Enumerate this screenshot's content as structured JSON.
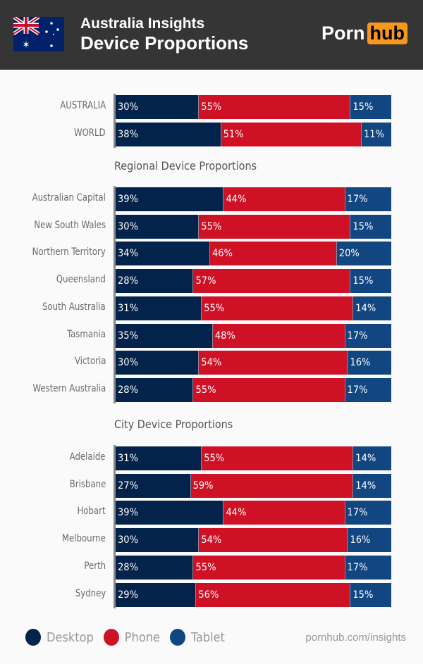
{
  "header": {
    "title": "Australia Insights",
    "subtitle": "Device Proportions",
    "logo": "Pornhub",
    "logo_left": "Porn",
    "logo_right": "hub"
  },
  "colors": {
    "Desktop": "#03234a",
    "Phone": "#cf1126",
    "Tablet": "#124680",
    "header": "#353535"
  },
  "chart_data": {
    "type": "bar",
    "stacked": true,
    "orientation": "horizontal",
    "unit": "%",
    "series_names": [
      "Desktop",
      "Phone",
      "Tablet"
    ],
    "groups": [
      {
        "title": "",
        "rows": [
          {
            "label": "AUSTRALIA",
            "values": [
              30,
              55,
              15
            ]
          },
          {
            "label": "WORLD",
            "values": [
              38,
              51,
              11
            ]
          }
        ]
      },
      {
        "title": "Regional Device Proportions",
        "rows": [
          {
            "label": "Australian Capital",
            "values": [
              39,
              44,
              17
            ]
          },
          {
            "label": "New South Wales",
            "values": [
              30,
              55,
              15
            ]
          },
          {
            "label": "Northern Territory",
            "values": [
              34,
              46,
              20
            ]
          },
          {
            "label": "Queensland",
            "values": [
              28,
              57,
              15
            ]
          },
          {
            "label": "South Australia",
            "values": [
              31,
              55,
              14
            ]
          },
          {
            "label": "Tasmania",
            "values": [
              35,
              48,
              17
            ]
          },
          {
            "label": "Victoria",
            "values": [
              30,
              54,
              16
            ]
          },
          {
            "label": "Western Australia",
            "values": [
              28,
              55,
              17
            ]
          }
        ]
      },
      {
        "title": "City Device Proportions",
        "rows": [
          {
            "label": "Adelaide",
            "values": [
              31,
              55,
              14
            ]
          },
          {
            "label": "Brisbane",
            "values": [
              27,
              59,
              14
            ]
          },
          {
            "label": "Hobart",
            "values": [
              39,
              44,
              17
            ]
          },
          {
            "label": "Melbourne",
            "values": [
              30,
              54,
              16
            ]
          },
          {
            "label": "Perth",
            "values": [
              28,
              55,
              17
            ]
          },
          {
            "label": "Sydney",
            "values": [
              29,
              56,
              15
            ]
          }
        ]
      }
    ],
    "legend": [
      "Desktop",
      "Phone",
      "Tablet"
    ],
    "legend_placement": "bottom-left"
  },
  "footer": {
    "source": "pornhub.com/insights"
  }
}
